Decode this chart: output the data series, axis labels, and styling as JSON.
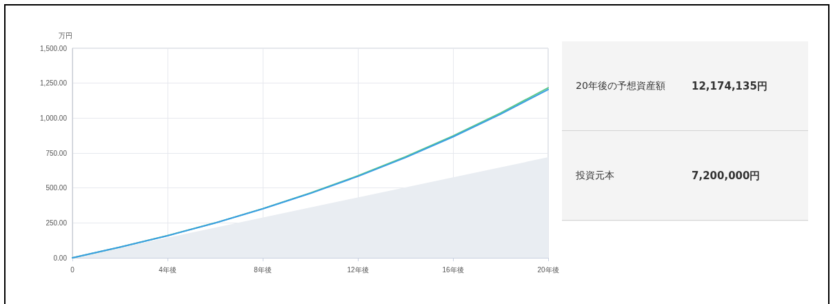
{
  "chart_data": [
    {
      "type": "line",
      "ylabel": "万円",
      "x": [
        0,
        2,
        4,
        6,
        8,
        10,
        12,
        14,
        16,
        18,
        20
      ],
      "series": [
        {
          "type": "area",
          "color": "#e9edf2",
          "x": [
            0,
            20
          ],
          "values": [
            0,
            720
          ]
        },
        {
          "color": "#5cc98a",
          "values": [
            0,
            76,
            159,
            250,
            352,
            464,
            587,
            723,
            873,
            1037,
            1217
          ]
        },
        {
          "color": "#3a9ee4",
          "values": [
            0,
            76,
            158,
            249,
            350,
            461,
            583,
            717,
            866,
            1028,
            1205
          ]
        }
      ],
      "xlim": [
        0,
        20
      ],
      "xticks": [
        0,
        {
          "value": 4,
          "label": "4年後"
        },
        {
          "value": 8,
          "label": "8年後"
        },
        {
          "value": 12,
          "label": "12年後"
        },
        {
          "value": 16,
          "label": "16年後"
        },
        {
          "value": 20,
          "label": "20年後"
        }
      ],
      "ylim": [
        0,
        1500
      ],
      "yticks": [
        {
          "value": 0,
          "label": "0.00"
        },
        {
          "value": 250,
          "label": "250.00"
        },
        {
          "value": 500,
          "label": "500.00"
        },
        {
          "value": 750,
          "label": "750.00"
        },
        {
          "value": 1000,
          "label": "1,000.00"
        },
        {
          "value": 1250,
          "label": "1,250.00"
        },
        {
          "value": 1500,
          "label": "1,500.00"
        }
      ],
      "grid": true,
      "marker": "none",
      "line_style": "solid"
    },
    {
      "type": "other",
      "annotations": [
        "20年後の予想資産額",
        "12,174,135円",
        "投資元本",
        "7,200,000円"
      ]
    }
  ]
}
